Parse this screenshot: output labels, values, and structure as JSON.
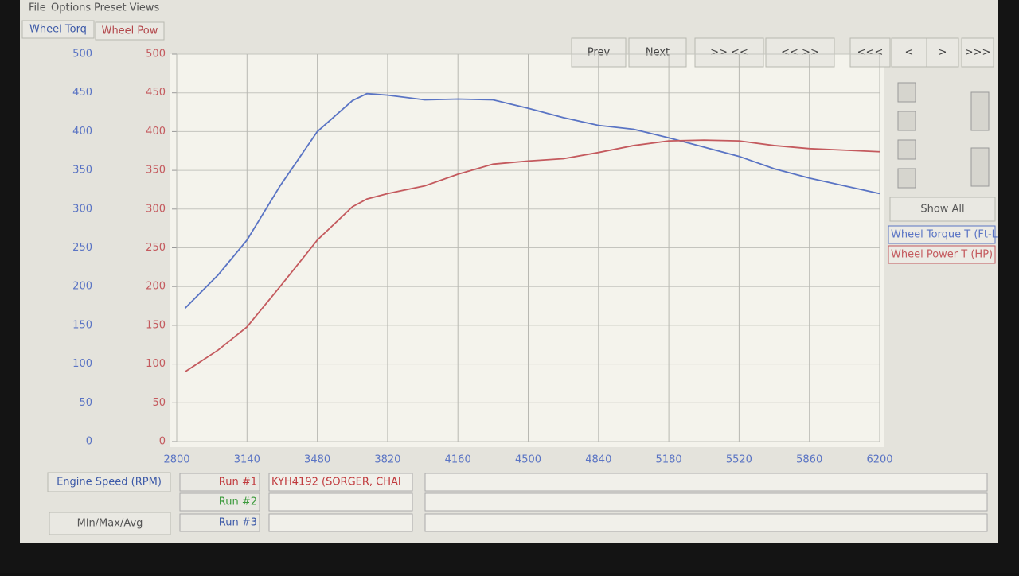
{
  "menu": [
    "File",
    "Options",
    "Preset Views"
  ],
  "tabs": [
    "Wheel Torq",
    "Wheel Pow"
  ],
  "buttons": [
    "Prev",
    "Next",
    ">> <<",
    "<< >>",
    "<<<",
    "<",
    ">",
    ">>>"
  ],
  "show_all": "Show All",
  "bottom": {
    "x_channel": "Engine Speed (RPM)",
    "min_max_avg": "Min/Max/Avg",
    "runs": [
      "Run #1",
      "Run #2",
      "Run #3"
    ],
    "run_1_name": "KYH4192 (SORGER, CHAI"
  },
  "chart_data": {
    "type": "line",
    "x": [
      2840,
      3000,
      3140,
      3300,
      3480,
      3650,
      3720,
      3820,
      4000,
      4160,
      4330,
      4500,
      4670,
      4840,
      5010,
      5180,
      5350,
      5520,
      5690,
      5860,
      6030,
      6200
    ],
    "series": [
      {
        "name": "Wheel Torque T (Ft-L",
        "color": "#5a74c4",
        "axis": "y",
        "values": [
          172,
          215,
          260,
          330,
          400,
          440,
          449,
          447,
          441,
          442,
          441,
          430,
          418,
          408,
          403,
          392,
          380,
          368,
          352,
          340,
          330,
          320
        ]
      },
      {
        "name": "Wheel Power T (HP)",
        "color": "#c45a5e",
        "axis": "y2",
        "values": [
          90,
          118,
          148,
          200,
          260,
          303,
          313,
          320,
          330,
          345,
          358,
          362,
          365,
          373,
          382,
          388,
          389,
          388,
          382,
          378,
          376,
          374
        ]
      }
    ],
    "xlim": [
      2800,
      6200
    ],
    "xticks": [
      2800,
      3140,
      3480,
      3820,
      4160,
      4500,
      4840,
      5180,
      5520,
      5860,
      6200
    ],
    "ylim": [
      0,
      500
    ],
    "yticks": [
      0,
      50,
      100,
      150,
      200,
      250,
      300,
      350,
      400,
      450,
      500
    ],
    "y2lim": [
      0,
      500
    ],
    "y2ticks": [
      0,
      50,
      100,
      150,
      200,
      250,
      300,
      350,
      400,
      450,
      500
    ],
    "grid": true
  }
}
